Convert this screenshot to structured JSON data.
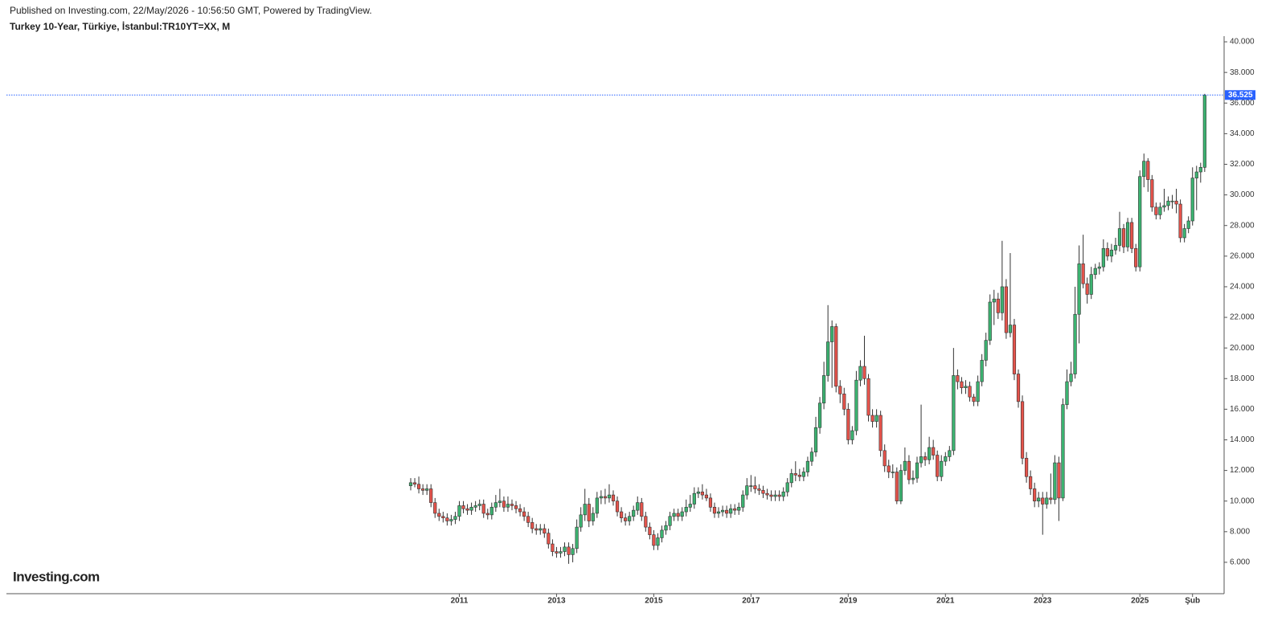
{
  "chart_data": {
    "type": "candlestick",
    "subtitle": "Published on Investing.com, 22/May/2026 - 10:56:50 GMT, Powered by TradingView.",
    "title": "Turkey 10-Year, Türkiye, İstanbul:TR10YT=XX, M",
    "watermark": "Investing.com",
    "up_color": "#3cb371",
    "down_color": "#e5534b",
    "last_price_color": "#2962ff",
    "categories": [
      null,
      null,
      null,
      null,
      null,
      null,
      null,
      null,
      null,
      null,
      null,
      null,
      "2011",
      null,
      null,
      null,
      null,
      null,
      null,
      null,
      null,
      null,
      null,
      null,
      null,
      null,
      null,
      null,
      null,
      null,
      null,
      null,
      null,
      null,
      null,
      null,
      "2013",
      null,
      null,
      null,
      null,
      null,
      null,
      null,
      null,
      null,
      null,
      null,
      null,
      null,
      null,
      null,
      null,
      null,
      null,
      null,
      null,
      null,
      null,
      null,
      "2015",
      null,
      null,
      null,
      null,
      null,
      null,
      null,
      null,
      null,
      null,
      null,
      null,
      null,
      null,
      null,
      null,
      null,
      null,
      null,
      null,
      null,
      null,
      null,
      "2017",
      null,
      null,
      null,
      null,
      null,
      null,
      null,
      null,
      null,
      null,
      null,
      null,
      null,
      null,
      null,
      null,
      null,
      null,
      null,
      null,
      null,
      null,
      null,
      "2019",
      null,
      null,
      null,
      null,
      null,
      null,
      null,
      null,
      null,
      null,
      null,
      null,
      null,
      null,
      null,
      null,
      null,
      null,
      null,
      null,
      null,
      null,
      null,
      "2021",
      null,
      null,
      null,
      null,
      null,
      null,
      null,
      null,
      null,
      null,
      null,
      null,
      null,
      null,
      null,
      null,
      null,
      null,
      null,
      null,
      null,
      null,
      null,
      "2023",
      null,
      null,
      null,
      null,
      null,
      null,
      null,
      null,
      null,
      null,
      null,
      null,
      null,
      null,
      null,
      null,
      null,
      null,
      null,
      null,
      null,
      null,
      null,
      "2025",
      null,
      null,
      null,
      null,
      null,
      null,
      null,
      null,
      null,
      null,
      null,
      null,
      "Şub",
      null,
      null,
      null
    ],
    "open": [
      11.0,
      11.2,
      11.1,
      10.8,
      10.7,
      10.8,
      9.9,
      9.2,
      9.0,
      8.9,
      8.7,
      8.8,
      9.0,
      9.7,
      9.5,
      9.4,
      9.6,
      9.7,
      9.8,
      9.2,
      9.1,
      9.6,
      9.9,
      10.0,
      9.6,
      9.8,
      9.7,
      9.5,
      9.3,
      9.0,
      8.6,
      8.2,
      8.1,
      8.2,
      7.9,
      7.2,
      6.7,
      6.6,
      6.7,
      7.0,
      6.5,
      6.9,
      8.3,
      9.1,
      9.8,
      8.7,
      9.2,
      10.2,
      10.3,
      10.2,
      10.4,
      10.0,
      9.3,
      8.9,
      8.7,
      9.0,
      9.4,
      9.9,
      9.0,
      8.3,
      7.8,
      7.1,
      7.6,
      8.1,
      8.4,
      9.0,
      9.2,
      9.0,
      9.3,
      9.6,
      9.8,
      10.5,
      10.6,
      10.4,
      10.2,
      9.6,
      9.2,
      9.3,
      9.4,
      9.2,
      9.5,
      9.4,
      9.6,
      10.4,
      11.0,
      11.0,
      10.8,
      10.7,
      10.5,
      10.4,
      10.3,
      10.4,
      10.3,
      10.6,
      11.2,
      11.8,
      11.7,
      11.6,
      11.9,
      12.6,
      13.2,
      14.8,
      16.4,
      18.2,
      20.4,
      21.4,
      17.5,
      17.0,
      16.0,
      14.0,
      14.6,
      17.9,
      18.8,
      18.0,
      15.6,
      15.2,
      15.6,
      13.3,
      12.3,
      11.9,
      11.9,
      10.0,
      12.0,
      12.6,
      11.4,
      11.5,
      12.5,
      12.9,
      12.7,
      13.5,
      13.0,
      11.6,
      12.6,
      12.9,
      13.3,
      18.2,
      17.8,
      17.4,
      17.5,
      16.8,
      16.5,
      17.8,
      19.2,
      20.5,
      23.0,
      23.2,
      22.3,
      24.0,
      21.0,
      21.5,
      18.3,
      16.5,
      12.8,
      11.6,
      10.8,
      10.0,
      10.2,
      9.8,
      10.2,
      10.1,
      12.5,
      10.2,
      16.3,
      17.8,
      18.3,
      22.2,
      25.5,
      24.2,
      23.5,
      24.8,
      25.2,
      25.3,
      26.5,
      26.0,
      26.4,
      26.7,
      27.8,
      26.6,
      28.2,
      26.5,
      25.3,
      31.2,
      32.2,
      31.0,
      29.2,
      28.7,
      29.2,
      29.3,
      29.6,
      29.6,
      29.4,
      27.2,
      27.8,
      28.3,
      31.1,
      31.5,
      31.8
    ],
    "high": [
      11.5,
      11.5,
      11.6,
      11.1,
      11.1,
      11.1,
      10.2,
      9.5,
      9.3,
      9.2,
      9.1,
      9.3,
      10.0,
      10.0,
      9.8,
      9.9,
      10.0,
      10.1,
      10.1,
      9.5,
      9.9,
      10.4,
      10.8,
      10.3,
      10.3,
      10.1,
      10.0,
      9.8,
      9.6,
      9.3,
      8.9,
      8.5,
      8.5,
      8.5,
      8.2,
      7.5,
      7.0,
      7.0,
      7.3,
      7.3,
      7.2,
      8.8,
      9.6,
      10.8,
      10.2,
      9.6,
      10.6,
      10.7,
      10.8,
      11.1,
      10.7,
      10.3,
      9.6,
      9.2,
      9.3,
      9.7,
      10.3,
      10.2,
      9.3,
      8.6,
      8.1,
      7.9,
      8.4,
      8.7,
      9.3,
      9.5,
      9.5,
      9.6,
      10.1,
      10.4,
      10.9,
      10.9,
      11.1,
      10.8,
      10.5,
      9.9,
      9.6,
      9.7,
      9.7,
      9.8,
      9.8,
      9.9,
      10.7,
      11.5,
      11.7,
      11.6,
      11.1,
      11.0,
      10.8,
      10.7,
      10.7,
      10.7,
      10.9,
      11.5,
      12.1,
      12.6,
      12.1,
      12.2,
      12.9,
      13.5,
      15.5,
      16.8,
      19.1,
      22.8,
      21.8,
      21.6,
      17.9,
      17.4,
      16.4,
      14.9,
      18.5,
      19.2,
      20.8,
      18.3,
      16.0,
      16.0,
      15.9,
      13.7,
      12.7,
      12.4,
      12.2,
      12.4,
      13.5,
      13.0,
      12.0,
      12.9,
      16.3,
      13.2,
      14.2,
      14.0,
      13.3,
      13.0,
      13.2,
      13.6,
      20.0,
      18.6,
      18.1,
      17.9,
      17.8,
      17.0,
      18.2,
      19.6,
      21.0,
      23.5,
      23.8,
      23.6,
      27.0,
      24.5,
      26.2,
      21.9,
      18.6,
      16.9,
      13.2,
      12.0,
      11.2,
      10.6,
      10.6,
      10.6,
      11.8,
      13.0,
      12.9,
      16.7,
      18.6,
      19.1,
      24.0,
      26.7,
      27.4,
      24.6,
      25.3,
      25.5,
      25.6,
      27.1,
      26.9,
      26.8,
      27.2,
      28.9,
      28.1,
      28.5,
      28.5,
      26.8,
      31.6,
      32.7,
      32.4,
      31.3,
      29.5,
      29.5,
      30.4,
      29.9,
      30.0,
      30.4,
      29.7,
      28.1,
      28.6,
      31.8,
      31.9,
      32.1,
      36.6
    ],
    "low": [
      10.7,
      10.9,
      10.5,
      10.4,
      10.4,
      9.6,
      8.9,
      8.7,
      8.6,
      8.4,
      8.4,
      8.5,
      8.7,
      9.2,
      9.1,
      9.1,
      9.3,
      9.4,
      8.9,
      8.8,
      8.8,
      9.3,
      9.6,
      9.3,
      9.3,
      9.4,
      9.2,
      9.0,
      8.7,
      8.3,
      7.9,
      7.8,
      7.8,
      7.6,
      6.9,
      6.4,
      6.3,
      6.3,
      6.4,
      5.9,
      6.0,
      6.6,
      8.0,
      8.7,
      8.3,
      8.4,
      8.9,
      9.8,
      9.8,
      9.9,
      9.7,
      9.0,
      8.6,
      8.4,
      8.4,
      8.7,
      9.1,
      8.7,
      8.0,
      7.5,
      6.8,
      6.8,
      7.3,
      7.8,
      8.1,
      8.7,
      8.7,
      8.7,
      9.0,
      9.3,
      9.5,
      10.2,
      10.1,
      10.0,
      9.3,
      8.9,
      8.9,
      9.0,
      8.9,
      8.9,
      9.1,
      9.1,
      9.3,
      10.1,
      10.6,
      10.5,
      10.4,
      10.2,
      10.1,
      10.0,
      10.0,
      10.0,
      10.0,
      10.3,
      10.9,
      11.3,
      11.3,
      11.3,
      11.6,
      12.3,
      12.9,
      14.4,
      16.0,
      17.8,
      17.4,
      17.1,
      16.4,
      15.6,
      13.7,
      13.7,
      14.3,
      17.5,
      17.6,
      15.2,
      14.8,
      14.8,
      12.9,
      11.9,
      11.5,
      11.5,
      9.8,
      9.8,
      11.7,
      11.1,
      11.1,
      11.2,
      12.2,
      12.3,
      12.4,
      12.7,
      11.3,
      11.3,
      12.3,
      12.6,
      13.0,
      17.3,
      17.0,
      17.0,
      16.5,
      16.2,
      16.2,
      17.5,
      18.8,
      20.2,
      21.5,
      21.9,
      21.8,
      20.6,
      20.7,
      17.9,
      16.1,
      12.4,
      11.2,
      10.4,
      9.6,
      9.6,
      7.8,
      9.5,
      9.8,
      9.8,
      8.7,
      10.0,
      16.0,
      17.5,
      18.0,
      20.3,
      23.9,
      22.9,
      23.2,
      24.5,
      24.8,
      25.0,
      25.7,
      25.6,
      26.1,
      26.3,
      26.2,
      26.3,
      26.2,
      25.0,
      25.0,
      30.5,
      30.2,
      28.9,
      28.4,
      28.4,
      28.9,
      29.0,
      29.1,
      28.8,
      26.9,
      26.9,
      27.5,
      28.0,
      29.0,
      30.8,
      31.5
    ],
    "close": [
      11.2,
      11.1,
      10.8,
      10.7,
      10.8,
      9.9,
      9.2,
      9.0,
      8.9,
      8.7,
      8.8,
      9.0,
      9.7,
      9.5,
      9.4,
      9.6,
      9.7,
      9.8,
      9.2,
      9.1,
      9.6,
      9.9,
      10.0,
      9.6,
      9.8,
      9.7,
      9.5,
      9.3,
      9.0,
      8.6,
      8.2,
      8.1,
      8.2,
      7.9,
      7.2,
      6.7,
      6.6,
      6.7,
      7.0,
      6.5,
      6.9,
      8.3,
      9.1,
      9.8,
      8.7,
      9.2,
      10.2,
      10.3,
      10.2,
      10.4,
      10.0,
      9.3,
      8.9,
      8.7,
      9.0,
      9.4,
      9.9,
      9.0,
      8.3,
      7.8,
      7.1,
      7.6,
      8.1,
      8.4,
      9.0,
      9.2,
      9.0,
      9.3,
      9.6,
      9.8,
      10.5,
      10.6,
      10.4,
      10.2,
      9.6,
      9.2,
      9.3,
      9.4,
      9.2,
      9.5,
      9.4,
      9.6,
      10.4,
      11.0,
      11.0,
      10.8,
      10.7,
      10.5,
      10.4,
      10.3,
      10.4,
      10.3,
      10.6,
      11.2,
      11.8,
      11.7,
      11.6,
      11.9,
      12.6,
      13.2,
      14.8,
      16.4,
      18.2,
      20.4,
      21.4,
      17.5,
      17.0,
      16.0,
      14.0,
      14.6,
      17.9,
      18.8,
      18.0,
      15.6,
      15.2,
      15.6,
      13.3,
      12.3,
      11.9,
      11.9,
      10.0,
      12.0,
      12.6,
      11.4,
      11.5,
      12.5,
      12.9,
      12.7,
      13.5,
      13.0,
      11.6,
      12.6,
      12.9,
      13.3,
      18.2,
      17.8,
      17.4,
      17.5,
      16.8,
      16.5,
      17.8,
      19.2,
      20.5,
      23.0,
      23.2,
      22.3,
      24.0,
      21.0,
      21.5,
      18.3,
      16.5,
      12.8,
      11.6,
      10.8,
      10.0,
      10.2,
      9.8,
      10.2,
      10.1,
      12.5,
      10.2,
      16.3,
      17.8,
      18.3,
      22.2,
      25.5,
      24.2,
      23.5,
      24.8,
      25.2,
      25.3,
      26.5,
      26.0,
      26.4,
      26.7,
      27.8,
      26.6,
      28.2,
      26.5,
      25.3,
      31.2,
      32.2,
      31.0,
      29.2,
      28.7,
      29.2,
      29.3,
      29.6,
      29.6,
      29.4,
      27.2,
      27.8,
      28.3,
      31.1,
      31.5,
      31.8,
      36.525
    ],
    "ylim": [
      3.95,
      40.37
    ],
    "yticks": [
      {
        "value": 6,
        "label": "6.000"
      },
      {
        "value": 8,
        "label": "8.000"
      },
      {
        "value": 10,
        "label": "10.000"
      },
      {
        "value": 12,
        "label": "12.000"
      },
      {
        "value": 14,
        "label": "14.000"
      },
      {
        "value": 16,
        "label": "16.000"
      },
      {
        "value": 18,
        "label": "18.000"
      },
      {
        "value": 20,
        "label": "20.000"
      },
      {
        "value": 22,
        "label": "22.000"
      },
      {
        "value": 24,
        "label": "24.000"
      },
      {
        "value": 26,
        "label": "26.000"
      },
      {
        "value": 28,
        "label": "28.000"
      },
      {
        "value": 30,
        "label": "30.000"
      },
      {
        "value": 32,
        "label": "32.000"
      },
      {
        "value": 34,
        "label": "34.000"
      },
      {
        "value": 36,
        "label": "36.000"
      },
      {
        "value": 38,
        "label": "38.000"
      },
      {
        "value": 40,
        "label": "40.000"
      }
    ]
  }
}
